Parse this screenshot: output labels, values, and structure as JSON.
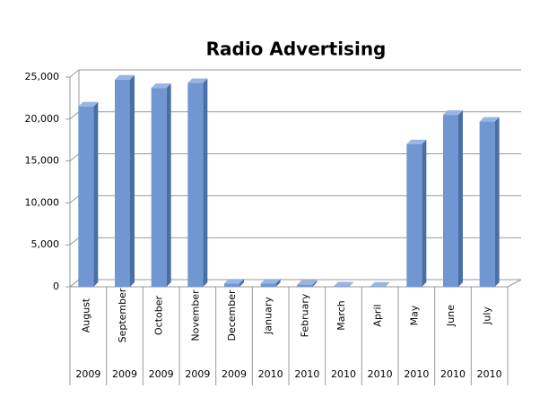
{
  "chart_data": {
    "type": "bar3d",
    "title": "Radio Advertising",
    "categories": [
      "August",
      "September",
      "October",
      "November",
      "December",
      "January",
      "February",
      "March",
      "April",
      "May",
      "June",
      "July"
    ],
    "years": [
      "2009",
      "2009",
      "2009",
      "2009",
      "2009",
      "2010",
      "2010",
      "2010",
      "2010",
      "2010",
      "2010",
      "2010"
    ],
    "values": [
      21500,
      24700,
      23700,
      24300,
      400,
      400,
      250,
      50,
      30,
      17000,
      20500,
      19700
    ],
    "color": "#7097d1",
    "ylim": [
      0,
      25000
    ],
    "yticks": [
      0,
      {
        "value": 5000,
        "label": "5,000"
      },
      {
        "value": 10000,
        "label": "10,000"
      },
      {
        "value": 15000,
        "label": "15,000"
      },
      {
        "value": 20000,
        "label": "20,000"
      },
      {
        "value": 25000,
        "label": "25,000"
      }
    ],
    "grid": true
  }
}
